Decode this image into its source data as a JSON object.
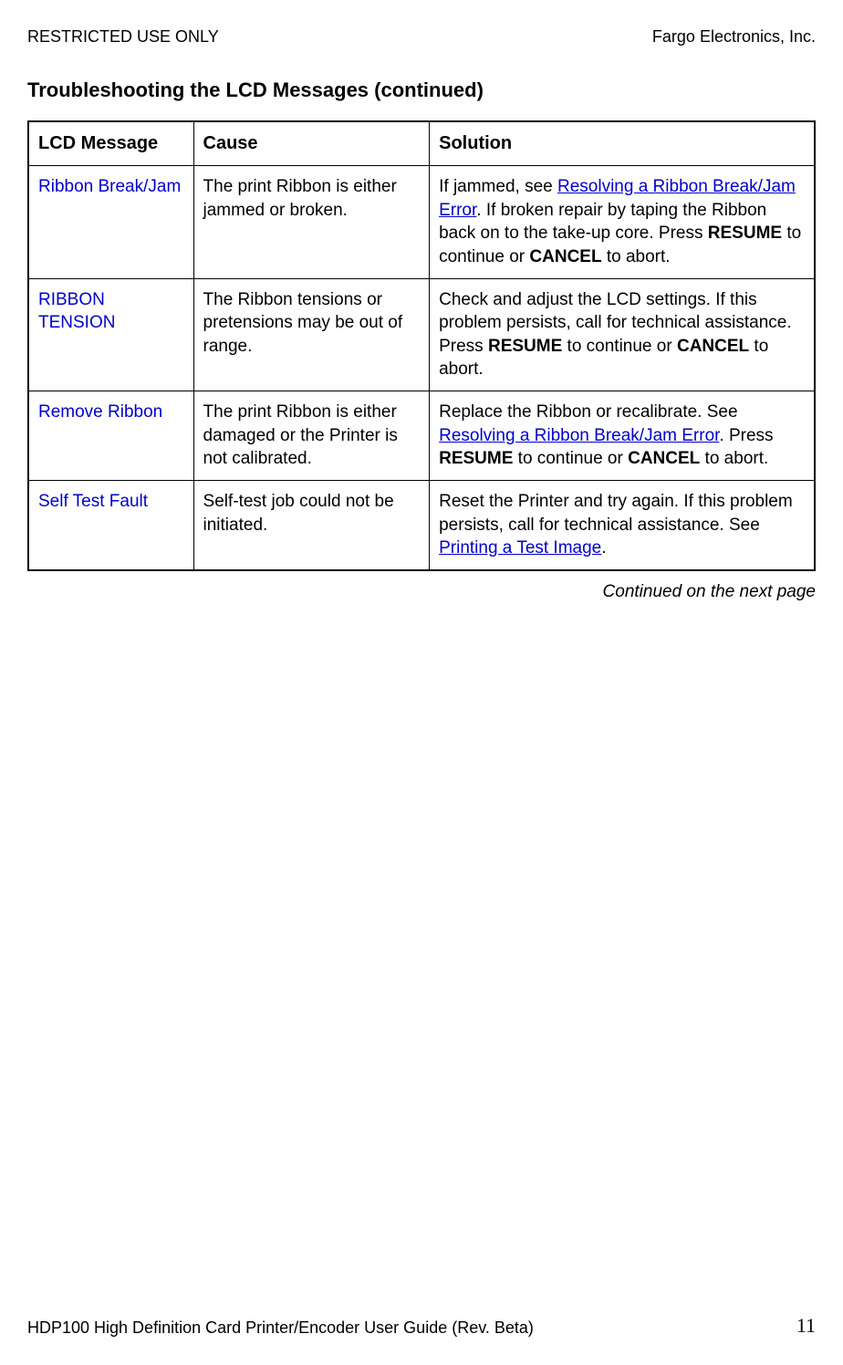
{
  "header": {
    "left": "RESTRICTED USE ONLY",
    "right": "Fargo Electronics, Inc."
  },
  "section_title": "Troubleshooting the LCD Messages (continued)",
  "table": {
    "columns": [
      "LCD Message",
      "Cause",
      "Solution"
    ],
    "rows": [
      {
        "message": "Ribbon Break/Jam",
        "cause": "The print Ribbon is either jammed or broken.",
        "solution_pre": "If jammed, see ",
        "solution_link1": "Resolving a Ribbon Break/Jam Error",
        "solution_post1": ". If broken repair by taping the Ribbon back on to the take-up core. Press ",
        "solution_bold1": "RESUME",
        "solution_mid": " to continue or ",
        "solution_bold2": "CANCEL",
        "solution_end": " to abort."
      },
      {
        "message": "RIBBON TENSION",
        "cause": "The Ribbon tensions or pretensions may be out of range.",
        "solution_pre": "Check and adjust the LCD settings. If this problem persists, call for technical assistance. Press ",
        "solution_bold1": "RESUME",
        "solution_mid": " to continue or ",
        "solution_bold2": "CANCEL",
        "solution_end": " to abort."
      },
      {
        "message": "Remove Ribbon",
        "cause": "The print Ribbon is either damaged or the Printer is not calibrated.",
        "solution_pre": "Replace the Ribbon or recalibrate. See ",
        "solution_link1": "Resolving a Ribbon Break/Jam Error",
        "solution_post1": ". Press ",
        "solution_bold1": "RESUME",
        "solution_mid": " to continue or ",
        "solution_bold2": "CANCEL",
        "solution_end": " to abort."
      },
      {
        "message": "Self Test Fault",
        "cause": "Self-test job could not be initiated.",
        "solution_pre": "Reset the Printer and try again. If this problem persists, call for technical assistance. See ",
        "solution_link1": "Printing a Test Image",
        "solution_end": "."
      }
    ]
  },
  "continued_text": "Continued on the next page",
  "footer": {
    "left": "HDP100 High Definition Card Printer/Encoder User Guide (Rev. Beta)",
    "page": "11"
  }
}
